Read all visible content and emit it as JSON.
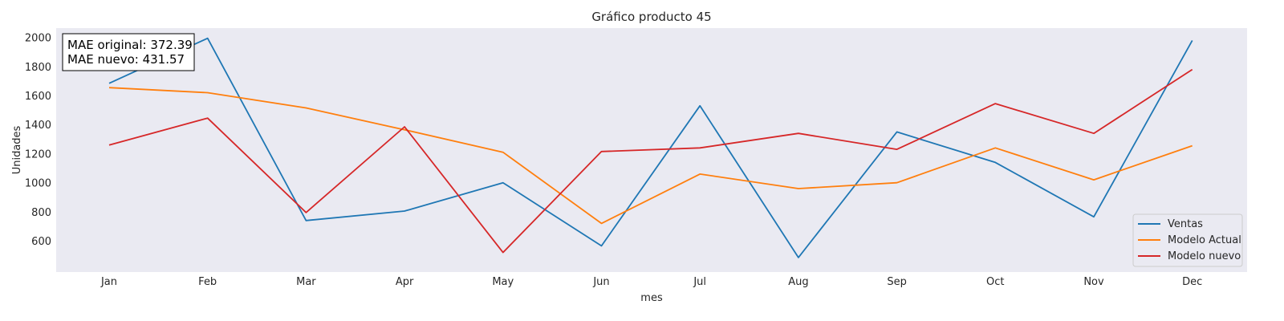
{
  "chart_data": {
    "type": "line",
    "title": "Gráfico producto 45",
    "xlabel": "mes",
    "ylabel": "Unidades",
    "categories": [
      "Jan",
      "Feb",
      "Mar",
      "Apr",
      "May",
      "Jun",
      "Jul",
      "Aug",
      "Sep",
      "Oct",
      "Nov",
      "Dec"
    ],
    "yticks": [
      600,
      800,
      1000,
      1200,
      1400,
      1600,
      1800,
      2000
    ],
    "ylim": [
      390,
      2070
    ],
    "grid": false,
    "legend_position": "lower-right",
    "series": [
      {
        "name": "Ventas",
        "color": "#1f77b4",
        "values": [
          1690,
          2000,
          745,
          810,
          1005,
          570,
          1535,
          490,
          1355,
          1145,
          770,
          1985
        ]
      },
      {
        "name": "Modelo Actual",
        "color": "#ff7f0e",
        "values": [
          1660,
          1625,
          1520,
          1370,
          1215,
          725,
          1065,
          965,
          1005,
          1245,
          1025,
          1260
        ]
      },
      {
        "name": "Modelo nuevo",
        "color": "#d62728",
        "values": [
          1265,
          1450,
          800,
          1390,
          525,
          1220,
          1245,
          1345,
          1235,
          1550,
          1345,
          1785
        ]
      }
    ],
    "annotation": {
      "lines": [
        "MAE original: 372.39",
        "MAE nuevo: 431.57"
      ]
    }
  }
}
